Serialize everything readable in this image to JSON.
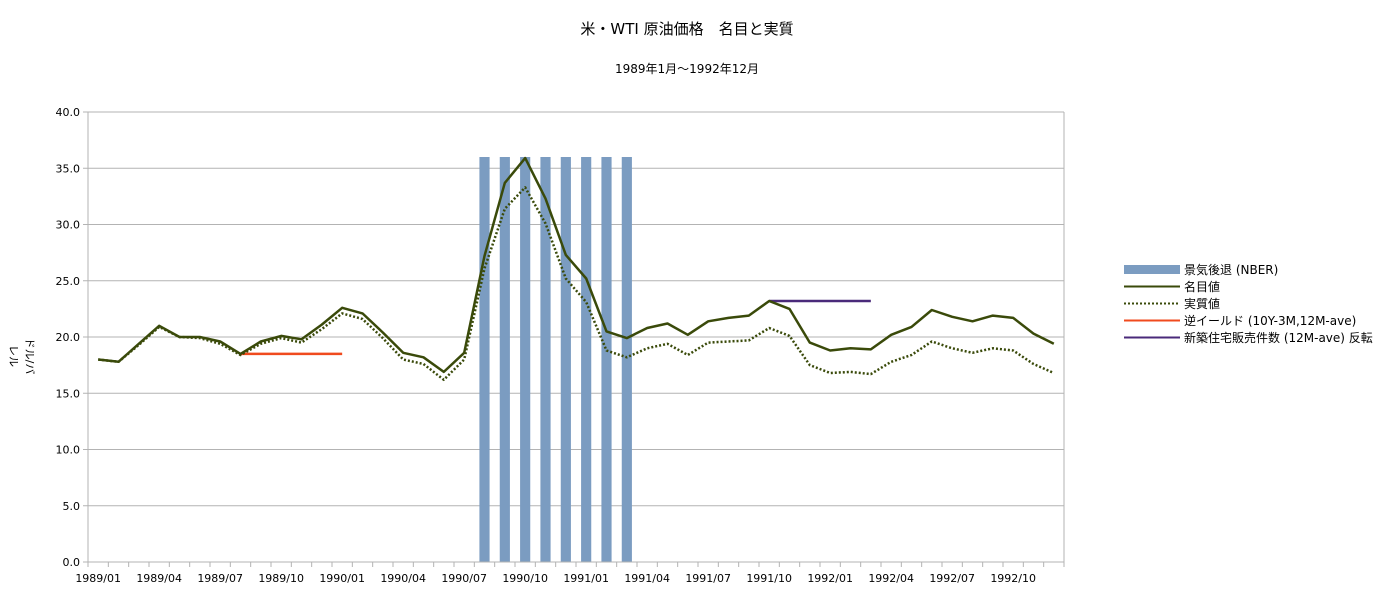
{
  "chart_data": {
    "type": "line",
    "title": "米・WTI 原油価格　名目と実質",
    "subtitle": "1989年1月～1992年12月",
    "ylabel": "ドル/バレル",
    "xlabel": "",
    "ylim": [
      0,
      40
    ],
    "yticks": [
      "0.0",
      "5.0",
      "10.0",
      "15.0",
      "20.0",
      "25.0",
      "30.0",
      "35.0",
      "40.0"
    ],
    "x": [
      "1989/01",
      "1989/02",
      "1989/03",
      "1989/04",
      "1989/05",
      "1989/06",
      "1989/07",
      "1989/08",
      "1989/09",
      "1989/10",
      "1989/11",
      "1989/12",
      "1990/01",
      "1990/02",
      "1990/03",
      "1990/04",
      "1990/05",
      "1990/06",
      "1990/07",
      "1990/08",
      "1990/09",
      "1990/10",
      "1990/11",
      "1990/12",
      "1991/01",
      "1991/02",
      "1991/03",
      "1991/04",
      "1991/05",
      "1991/06",
      "1991/07",
      "1991/08",
      "1991/09",
      "1991/10",
      "1991/11",
      "1991/12",
      "1992/01",
      "1992/02",
      "1992/03",
      "1992/04",
      "1992/05",
      "1992/06",
      "1992/07",
      "1992/08",
      "1992/09",
      "1992/10",
      "1992/11",
      "1992/12"
    ],
    "xtick_labels": [
      "1989/01",
      "1989/04",
      "1989/07",
      "1989/10",
      "1990/01",
      "1990/04",
      "1990/07",
      "1990/10",
      "1991/01",
      "1991/04",
      "1991/07",
      "1991/10",
      "1992/01",
      "1992/04",
      "1992/07",
      "1992/10"
    ],
    "grid": true,
    "legend_position": "right",
    "series": [
      {
        "name": "景気後退 (NBER)",
        "kind": "bar",
        "color": "#7b9cc1",
        "values": [
          0,
          0,
          0,
          0,
          0,
          0,
          0,
          0,
          0,
          0,
          0,
          0,
          0,
          0,
          0,
          0,
          0,
          0,
          0,
          36,
          36,
          36,
          36,
          36,
          36,
          36,
          36,
          0,
          0,
          0,
          0,
          0,
          0,
          0,
          0,
          0,
          0,
          0,
          0,
          0,
          0,
          0,
          0,
          0,
          0,
          0,
          0,
          0
        ]
      },
      {
        "name": "名目値",
        "kind": "line",
        "color": "#3a4a0a",
        "style": "solid",
        "values": [
          18.0,
          17.8,
          19.4,
          21.0,
          20.0,
          20.0,
          19.6,
          18.5,
          19.6,
          20.1,
          19.8,
          21.1,
          22.6,
          22.1,
          20.4,
          18.6,
          18.2,
          16.9,
          18.6,
          27.2,
          33.7,
          35.9,
          32.3,
          27.3,
          25.2,
          20.5,
          19.9,
          20.8,
          21.2,
          20.2,
          21.4,
          21.7,
          21.9,
          23.2,
          22.5,
          19.5,
          18.8,
          19.0,
          18.9,
          20.2,
          20.9,
          22.4,
          21.8,
          21.4,
          21.9,
          21.7,
          20.3,
          19.4
        ]
      },
      {
        "name": "実質値",
        "kind": "line",
        "color": "#3a4a0a",
        "style": "dotted",
        "values": [
          18.0,
          17.8,
          19.3,
          20.9,
          20.0,
          19.9,
          19.4,
          18.4,
          19.4,
          19.9,
          19.5,
          20.7,
          22.1,
          21.6,
          19.9,
          18.0,
          17.6,
          16.2,
          18.0,
          26.1,
          31.4,
          33.3,
          30.1,
          25.2,
          23.1,
          18.8,
          18.2,
          19.0,
          19.4,
          18.4,
          19.5,
          19.6,
          19.7,
          20.8,
          20.1,
          17.5,
          16.8,
          16.9,
          16.7,
          17.8,
          18.4,
          19.6,
          19.0,
          18.6,
          19.0,
          18.8,
          17.6,
          16.8
        ]
      },
      {
        "name": "逆イールド (10Y-3M,12M-ave)",
        "kind": "segment",
        "color": "#f04a1e",
        "x_start": "1989/08",
        "x_end": "1990/01",
        "value": 18.5
      },
      {
        "name": "新築住宅販売件数 (12M-ave) 反転",
        "kind": "segment",
        "color": "#4a2a7a",
        "x_start": "1991/10",
        "x_end": "1992/03",
        "value": 23.2
      }
    ]
  }
}
